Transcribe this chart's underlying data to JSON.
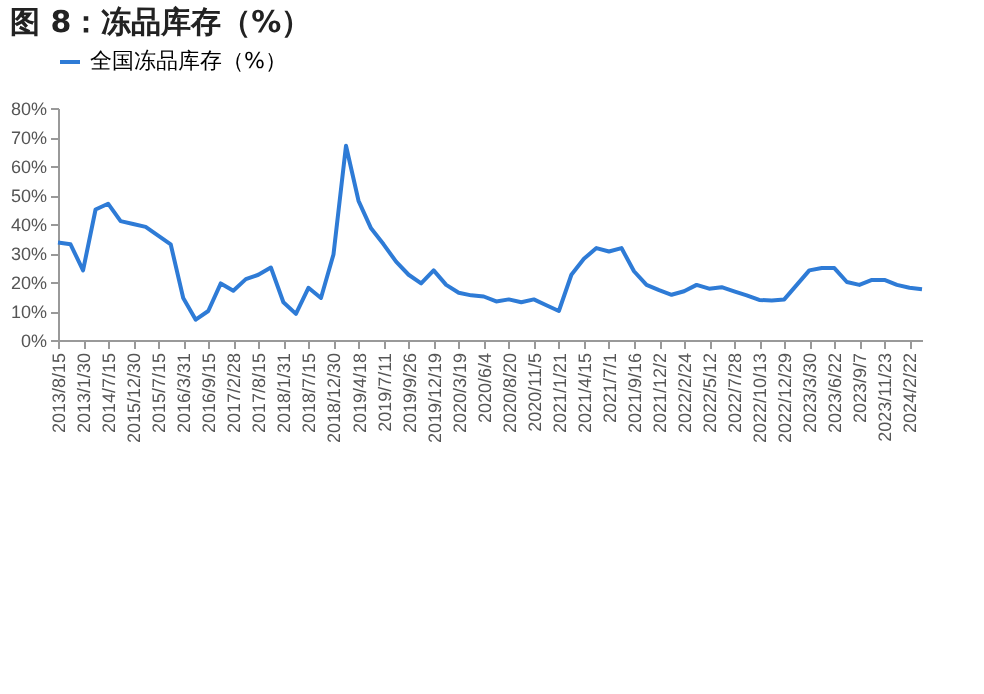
{
  "chart_data": {
    "type": "line",
    "title": "图 8：冻品库存（%）",
    "legend": "top",
    "categories": [
      "2013/8/15",
      null,
      "2013/1/30",
      null,
      "2014/7/15",
      null,
      "2015/12/30",
      null,
      "2015/7/15",
      null,
      "2016/3/31",
      null,
      "2016/9/15",
      null,
      "2017/2/28",
      null,
      "2017/8/15",
      null,
      "2018/1/31",
      null,
      "2018/7/15",
      null,
      "2018/12/30",
      null,
      "2019/4/18",
      null,
      "2019/7/11",
      null,
      "2019/9/26",
      null,
      "2019/12/19",
      null,
      "2020/3/19",
      null,
      "2020/6/4",
      null,
      "2020/8/20",
      null,
      "2020/11/5",
      null,
      "2021/1/21",
      null,
      "2021/4/15",
      null,
      "2021/7/1",
      null,
      "2021/9/16",
      null,
      "2021/12/2",
      null,
      "2022/2/24",
      null,
      "2022/5/12",
      null,
      "2022/7/28",
      null,
      "2022/10/13",
      null,
      "2022/12/29",
      null,
      "2023/3/30",
      null,
      "2023/6/22",
      null,
      "2023/9/7",
      null,
      "2023/11/23",
      null,
      "2024/2/22",
      null
    ],
    "series": [
      {
        "name": "全国冻品库存（%）",
        "color": "#2e7bd6",
        "values": [
          33.6,
          33,
          24,
          45,
          47,
          41,
          40,
          39,
          36,
          33,
          14.5,
          7,
          10,
          19.5,
          17,
          21,
          22.5,
          25,
          13,
          9,
          18,
          14.5,
          29.5,
          67,
          48,
          38.5,
          33,
          27,
          22.5,
          19.5,
          24,
          19,
          16.3,
          15.4,
          15,
          13.3,
          14,
          13,
          14,
          12,
          10,
          22.5,
          28,
          31.7,
          30.5,
          31.7,
          23.7,
          19,
          17.2,
          15.6,
          16.8,
          19,
          17.7,
          18.2,
          16.8,
          15.4,
          13.8,
          13.6,
          14,
          19,
          24,
          24.8,
          24.8,
          20,
          19,
          20.7,
          20.7,
          19,
          18,
          17.5
        ]
      }
    ],
    "ylim": [
      0,
      80
    ],
    "yticks": [
      {
        "value": 0,
        "label": "0%"
      },
      {
        "value": 10,
        "label": "10%"
      },
      {
        "value": 20,
        "label": "20%"
      },
      {
        "value": 30,
        "label": "30%"
      },
      {
        "value": 40,
        "label": "40%"
      },
      {
        "value": 50,
        "label": "50%"
      },
      {
        "value": 60,
        "label": "60%"
      },
      {
        "value": 70,
        "label": "70%"
      },
      {
        "value": 80,
        "label": "80%"
      }
    ]
  }
}
